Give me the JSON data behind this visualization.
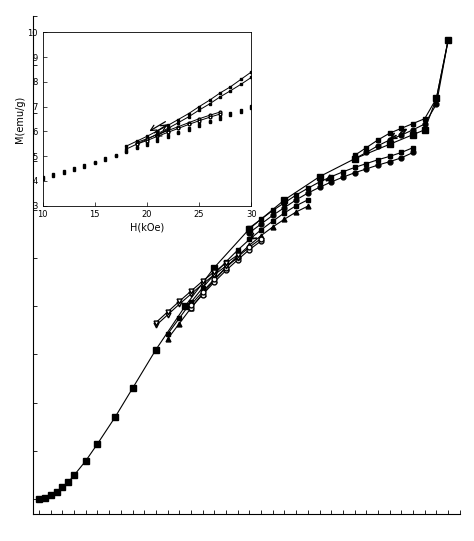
{
  "bg_color": "#ffffff",
  "line_color": "#000000",
  "main_sq_H": [
    0,
    1,
    2,
    3,
    4,
    5,
    6,
    8,
    10,
    13,
    16,
    20,
    25,
    30,
    36,
    42,
    48,
    54,
    60,
    64,
    66,
    68,
    70
  ],
  "main_sq_M": [
    0.0,
    0.04,
    0.09,
    0.16,
    0.25,
    0.36,
    0.5,
    0.8,
    1.15,
    1.7,
    2.3,
    3.1,
    4.0,
    4.8,
    5.6,
    6.2,
    6.68,
    7.05,
    7.35,
    7.55,
    7.65,
    8.3,
    9.5
  ],
  "loop1_outer_H": [
    54,
    56,
    58,
    60,
    62,
    64,
    66,
    68,
    70
  ],
  "loop1_outer_M": [
    7.12,
    7.28,
    7.44,
    7.58,
    7.68,
    7.78,
    7.88,
    8.3,
    9.5
  ],
  "loop1_inner_H": [
    54,
    56,
    58,
    60,
    62,
    64,
    66,
    68,
    70
  ],
  "loop1_inner_M": [
    7.05,
    7.18,
    7.32,
    7.44,
    7.54,
    7.65,
    7.77,
    8.18,
    9.5
  ],
  "loop2_outer_H": [
    36,
    38,
    40,
    42,
    44,
    46,
    48,
    50,
    52,
    54,
    56,
    58,
    60,
    62,
    64
  ],
  "loop2_outer_M": [
    5.62,
    5.8,
    5.98,
    6.14,
    6.3,
    6.44,
    6.57,
    6.68,
    6.78,
    6.87,
    6.95,
    7.03,
    7.1,
    7.18,
    7.28
  ],
  "loop2_inner_H": [
    36,
    38,
    40,
    42,
    44,
    46,
    48,
    50,
    52,
    54,
    56,
    58,
    60,
    62,
    64
  ],
  "loop2_inner_M": [
    5.52,
    5.7,
    5.88,
    6.04,
    6.2,
    6.34,
    6.46,
    6.57,
    6.67,
    6.76,
    6.84,
    6.92,
    6.99,
    7.07,
    7.18
  ],
  "loop3_outer_H": [
    22,
    24,
    26,
    28,
    30,
    32,
    34,
    36,
    38,
    40,
    42,
    44,
    46
  ],
  "loop3_outer_M": [
    3.42,
    3.75,
    4.08,
    4.38,
    4.66,
    4.92,
    5.16,
    5.38,
    5.58,
    5.76,
    5.93,
    6.08,
    6.2
  ],
  "loop3_inner_H": [
    22,
    24,
    26,
    28,
    30,
    32,
    34,
    36,
    38,
    40,
    42,
    44,
    46
  ],
  "loop3_inner_M": [
    3.32,
    3.64,
    3.96,
    4.26,
    4.54,
    4.8,
    5.04,
    5.26,
    5.46,
    5.64,
    5.8,
    5.95,
    6.07
  ],
  "open_circ_lo_H": [
    26,
    28,
    30,
    32,
    34,
    36,
    38
  ],
  "open_circ_lo_M": [
    3.97,
    4.24,
    4.5,
    4.74,
    4.96,
    5.17,
    5.35
  ],
  "open_circ_hi_H": [
    26,
    28,
    30,
    32,
    34,
    36,
    38
  ],
  "open_circ_hi_M": [
    4.03,
    4.3,
    4.56,
    4.8,
    5.02,
    5.22,
    5.4
  ],
  "open_tri_lo_H": [
    20,
    22,
    24,
    26,
    28,
    30,
    32,
    34
  ],
  "open_tri_lo_M": [
    3.6,
    3.82,
    4.04,
    4.25,
    4.46,
    4.65,
    4.83,
    5.0
  ],
  "open_tri_hi_H": [
    20,
    22,
    24,
    26,
    28,
    30,
    32,
    34
  ],
  "open_tri_hi_M": [
    3.66,
    3.88,
    4.1,
    4.31,
    4.52,
    4.71,
    4.89,
    5.06
  ],
  "inset_sq1_H": [
    10,
    11,
    12,
    13,
    14,
    15,
    16,
    17,
    18,
    19,
    20,
    21,
    22,
    23,
    24,
    25,
    26,
    27,
    28,
    29,
    30
  ],
  "inset_sq1_M": [
    4.14,
    4.26,
    4.38,
    4.51,
    4.64,
    4.77,
    4.91,
    5.06,
    5.21,
    5.37,
    5.53,
    5.68,
    5.84,
    5.99,
    6.14,
    6.29,
    6.44,
    6.59,
    6.73,
    6.88,
    7.02
  ],
  "inset_sq2_H": [
    10,
    11,
    12,
    13,
    14,
    15,
    16,
    17,
    18,
    19,
    20,
    21,
    22,
    23,
    24,
    25,
    26,
    27,
    28,
    29,
    30
  ],
  "inset_sq2_M": [
    4.08,
    4.2,
    4.32,
    4.45,
    4.58,
    4.71,
    4.85,
    5.0,
    5.15,
    5.31,
    5.46,
    5.61,
    5.77,
    5.92,
    6.07,
    6.22,
    6.37,
    6.52,
    6.66,
    6.8,
    6.94
  ],
  "inset_loop1_hi_H": [
    18,
    19,
    20,
    21,
    22,
    23,
    24,
    25,
    26,
    27,
    28,
    29,
    30
  ],
  "inset_loop1_hi_M": [
    5.4,
    5.6,
    5.8,
    6.02,
    6.24,
    6.48,
    6.72,
    7.0,
    7.26,
    7.55,
    7.8,
    8.1,
    8.4
  ],
  "inset_loop1_lo_H": [
    18,
    19,
    20,
    21,
    22,
    23,
    24,
    25,
    26,
    27,
    28,
    29,
    30
  ],
  "inset_loop1_lo_M": [
    5.28,
    5.48,
    5.68,
    5.9,
    6.12,
    6.35,
    6.59,
    6.86,
    7.11,
    7.39,
    7.64,
    7.9,
    8.18
  ],
  "inset_loop2_hi_H": [
    19,
    20,
    21,
    22,
    23,
    24,
    25,
    26,
    27
  ],
  "inset_loop2_hi_M": [
    5.55,
    5.7,
    5.87,
    6.03,
    6.19,
    6.35,
    6.51,
    6.65,
    6.78
  ],
  "inset_loop2_lo_H": [
    19,
    20,
    21,
    22,
    23,
    24,
    25,
    26,
    27
  ],
  "inset_loop2_lo_M": [
    5.48,
    5.63,
    5.8,
    5.96,
    6.12,
    6.28,
    6.43,
    6.57,
    6.7
  ],
  "inset_xlabel": "H(kOe)",
  "inset_ylabel": "M(emu/g)"
}
